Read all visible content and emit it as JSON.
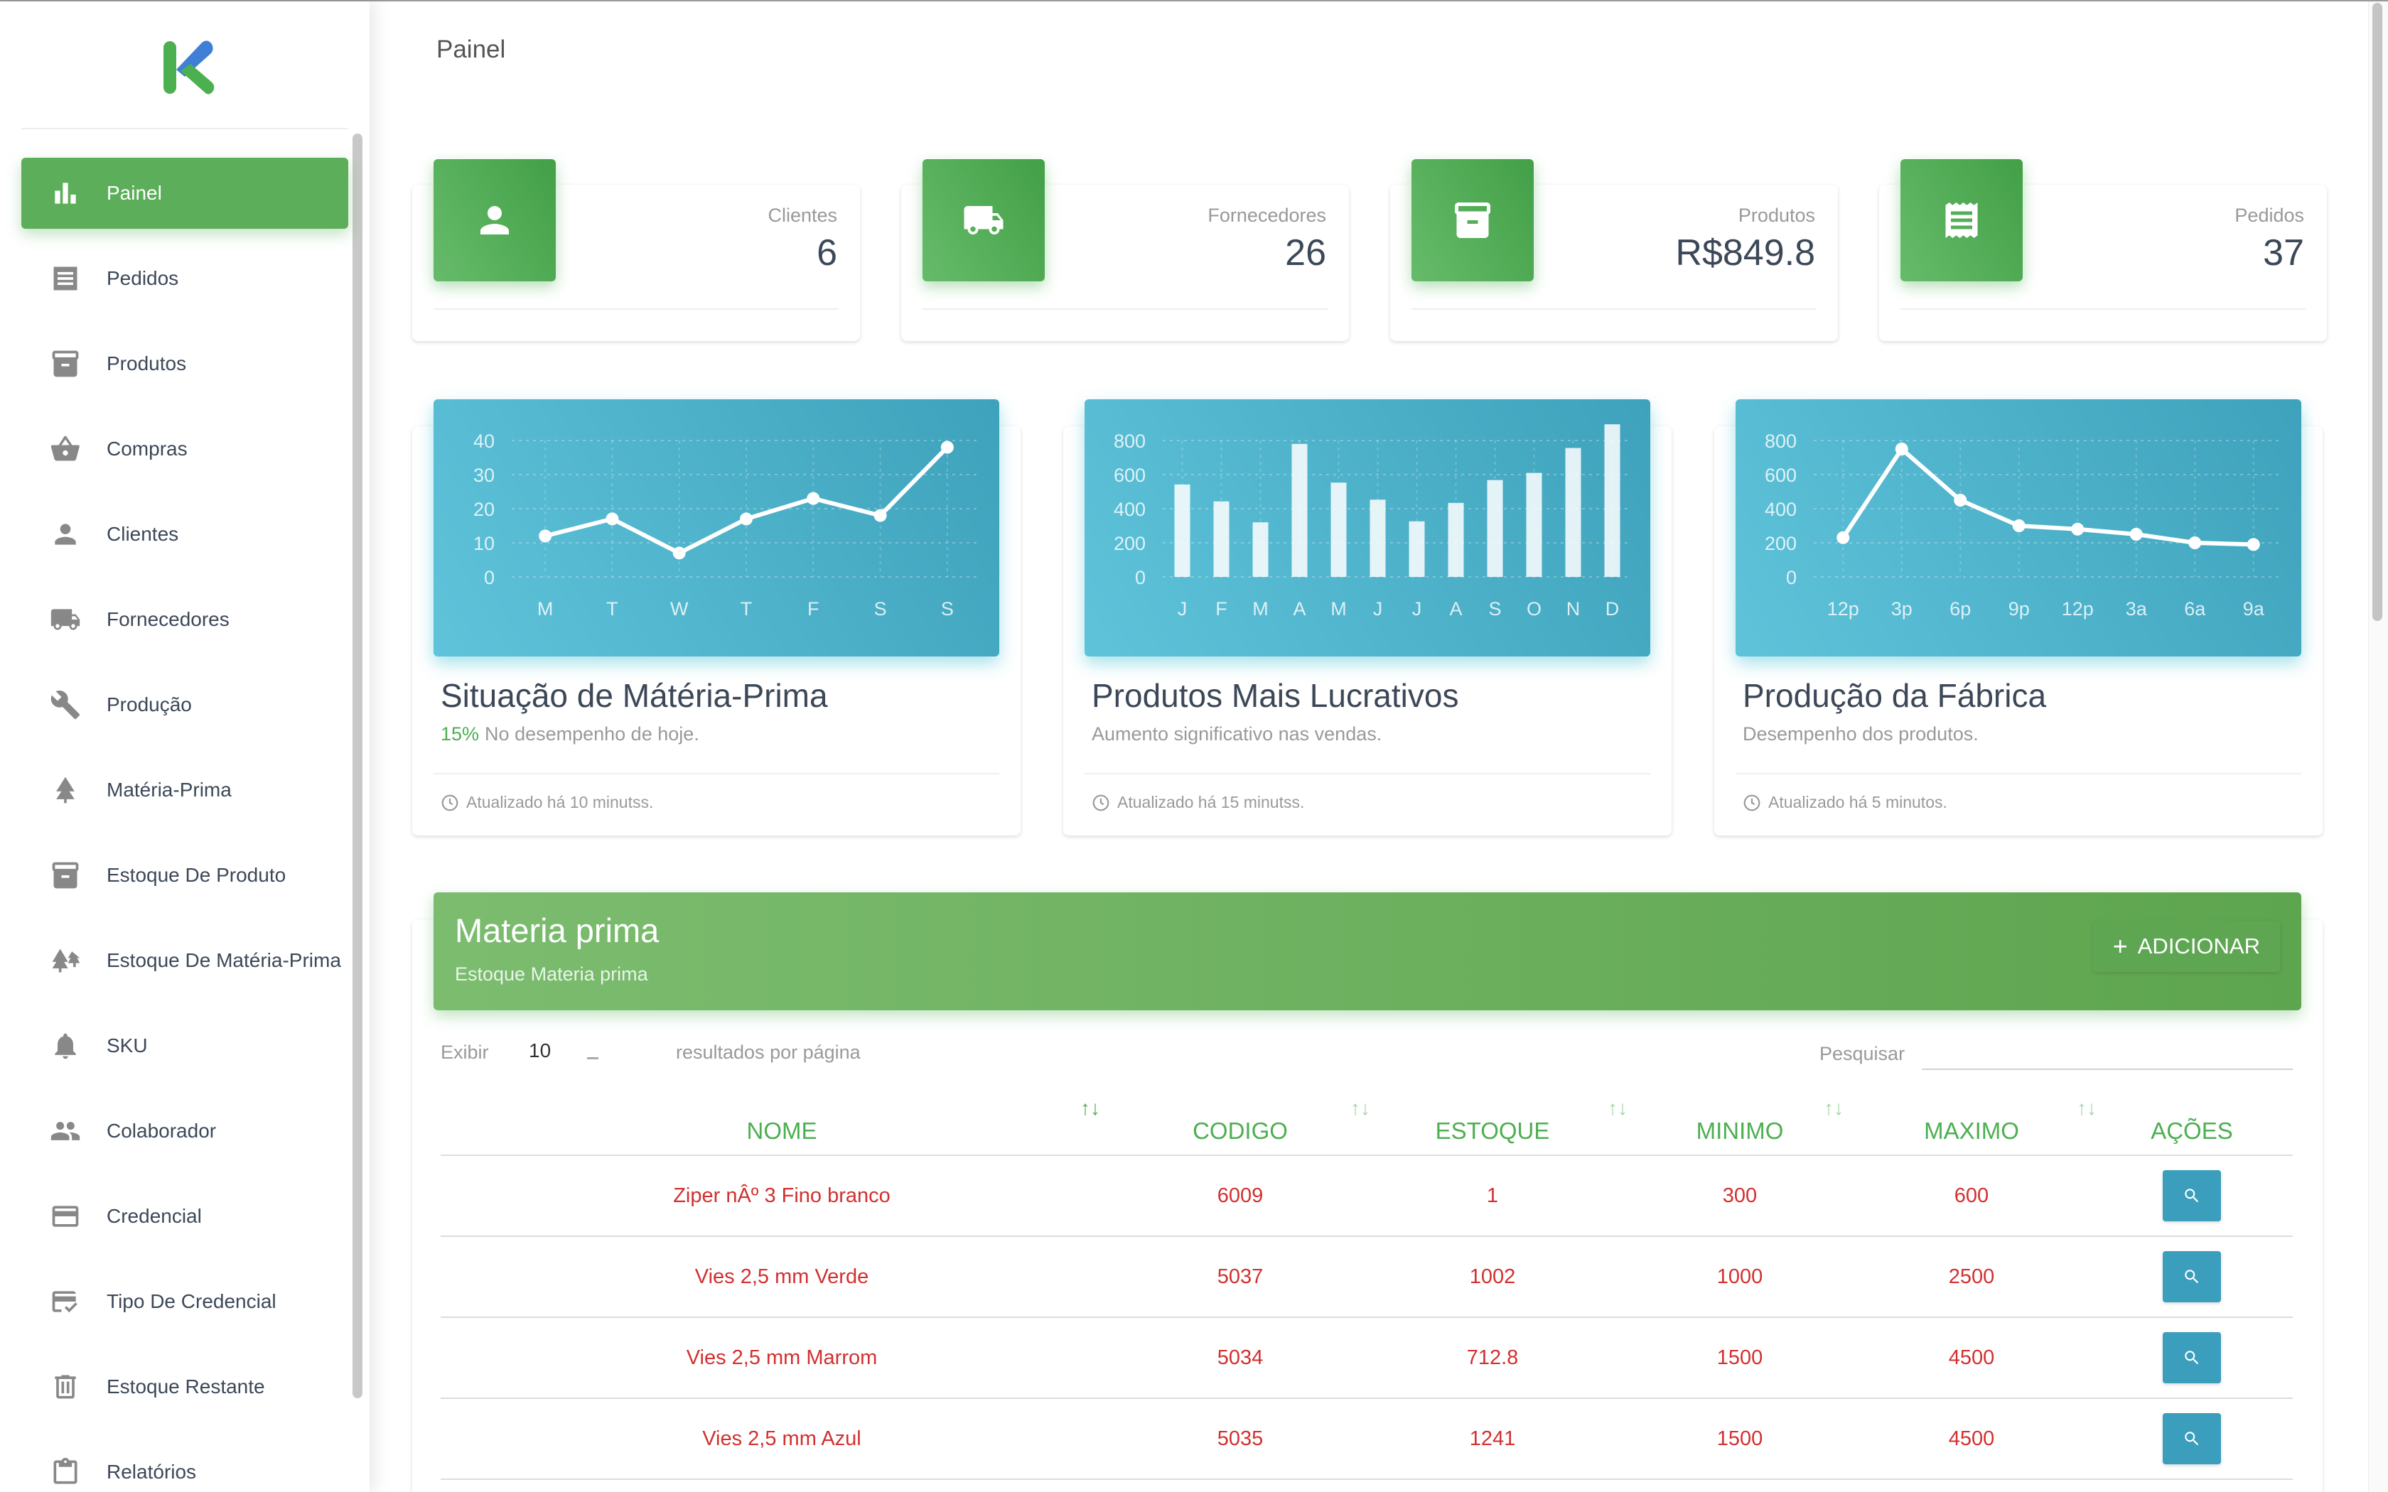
{
  "page_title": "Painel",
  "sidebar": {
    "items": [
      {
        "label": "Painel",
        "icon": "bar-chart-icon",
        "active": true
      },
      {
        "label": "Pedidos",
        "icon": "list-icon"
      },
      {
        "label": "Produtos",
        "icon": "archive-icon"
      },
      {
        "label": "Compras",
        "icon": "basket-icon"
      },
      {
        "label": "Clientes",
        "icon": "person-icon"
      },
      {
        "label": "Fornecedores",
        "icon": "truck-icon"
      },
      {
        "label": "Produção",
        "icon": "tools-icon"
      },
      {
        "label": "Matéria-Prima",
        "icon": "tree-icon"
      },
      {
        "label": "Estoque De Produto",
        "icon": "archive-icon"
      },
      {
        "label": "Estoque De Matéria-Prima",
        "icon": "forest-icon"
      },
      {
        "label": "SKU",
        "icon": "bell-icon"
      },
      {
        "label": "Colaborador",
        "icon": "group-icon"
      },
      {
        "label": "Credencial",
        "icon": "card-icon"
      },
      {
        "label": "Tipo De Credencial",
        "icon": "card-check-icon"
      },
      {
        "label": "Estoque Restante",
        "icon": "delete-box-icon"
      },
      {
        "label": "Relatórios",
        "icon": "clipboard-icon"
      }
    ]
  },
  "stats": [
    {
      "label": "Clientes",
      "value": "6",
      "icon": "person-icon"
    },
    {
      "label": "Fornecedores",
      "value": "26",
      "icon": "truck-icon"
    },
    {
      "label": "Produtos",
      "value": "R$849.8",
      "icon": "archive-icon"
    },
    {
      "label": "Pedidos",
      "value": "37",
      "icon": "receipt-icon"
    }
  ],
  "chart_data": [
    {
      "type": "line",
      "title": "Situação de Mátéria-Prima",
      "categories": [
        "M",
        "T",
        "W",
        "T",
        "F",
        "S",
        "S"
      ],
      "values": [
        12,
        17,
        7,
        17,
        23,
        18,
        38
      ],
      "ylim": [
        0,
        40
      ],
      "yticks": [
        "0",
        "10",
        "20",
        "30",
        "40"
      ],
      "grid": true
    },
    {
      "type": "bar",
      "title": "Produtos Mais Lucrativos",
      "categories": [
        "J",
        "F",
        "M",
        "A",
        "M",
        "J",
        "J",
        "A",
        "S",
        "O",
        "N",
        "D"
      ],
      "values": [
        542,
        443,
        320,
        780,
        553,
        453,
        326,
        434,
        568,
        610,
        756,
        895
      ],
      "ylim": [
        0,
        800
      ],
      "yticks": [
        "0",
        "200",
        "400",
        "600",
        "800"
      ],
      "grid": true
    },
    {
      "type": "line",
      "title": "Produção da Fábrica",
      "categories": [
        "12p",
        "3p",
        "6p",
        "9p",
        "12p",
        "3a",
        "6a",
        "9a"
      ],
      "values": [
        230,
        750,
        450,
        300,
        280,
        250,
        200,
        190
      ],
      "ylim": [
        0,
        800
      ],
      "yticks": [
        "0",
        "200",
        "400",
        "600",
        "800"
      ],
      "grid": true
    }
  ],
  "chart_cards": [
    {
      "title": "Situação de Mátéria-Prima",
      "pct": "15%",
      "subtitle": "No desempenho de hoje.",
      "footer": "Atualizado há 10 minutss."
    },
    {
      "title": "Produtos Mais Lucrativos",
      "pct": "",
      "subtitle": "Aumento significativo nas vendas.",
      "footer": "Atualizado há 15 minutss."
    },
    {
      "title": "Produção da Fábrica",
      "pct": "",
      "subtitle": "Desempenho dos produtos.",
      "footer": "Atualizado há 5 minutos."
    }
  ],
  "table": {
    "title": "Materia prima",
    "subtitle": "Estoque Materia prima",
    "add_label": "ADICIONAR",
    "show_label": "Exibir",
    "page_size": "10",
    "per_page_label": "resultados por página",
    "search_label": "Pesquisar",
    "search_value": "",
    "columns": [
      "NOME",
      "CODIGO",
      "ESTOQUE",
      "MINIMO",
      "MAXIMO",
      "AÇÕES"
    ],
    "rows": [
      [
        "Ziper nÂº 3 Fino branco",
        "6009",
        "1",
        "300",
        "600"
      ],
      [
        "Vies 2,5 mm Verde",
        "5037",
        "1002",
        "1000",
        "2500"
      ],
      [
        "Vies 2,5 mm Marrom",
        "5034",
        "712.8",
        "1500",
        "4500"
      ],
      [
        "Vies 2,5 mm Azul",
        "5035",
        "1241",
        "1500",
        "4500"
      ]
    ]
  },
  "colors": {
    "primary_green": "#4caf50",
    "chart_cyan": "#4fb3ce",
    "value_red": "#d32f2f",
    "action_blue": "#3a9ebc"
  }
}
